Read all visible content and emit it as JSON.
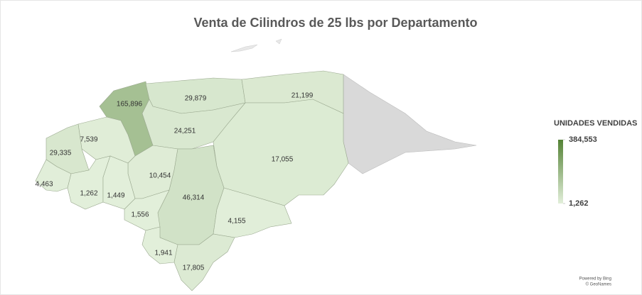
{
  "chart_data": {
    "type": "choropleth",
    "title": "Venta de Cilindros de 25 lbs por Departamento",
    "values": [
      165896,
      29879,
      21199,
      24251,
      7539,
      29335,
      17055,
      10454,
      4463,
      1262,
      1449,
      46314,
      1556,
      4155,
      1941,
      17805
    ],
    "value_labels": [
      "165,896",
      "29,879",
      "21,199",
      "24,251",
      "7,539",
      "29,335",
      "17,055",
      "10,454",
      "4,463",
      "1,262",
      "1,449",
      "46,314",
      "1,556",
      "4,155",
      "1,941",
      "17,805"
    ],
    "legend_title": "UNIDADES VENDIDAS",
    "legend_ticks": [
      {
        "value": 384553,
        "label": "384,553"
      },
      {
        "value": 1262,
        "label": "1,262"
      }
    ],
    "color_low": "#e2efda",
    "color_high": "#548235",
    "no_data_color": "#d9d9d9",
    "attribution": [
      "Powered by Bing",
      "© GeoNames"
    ]
  }
}
